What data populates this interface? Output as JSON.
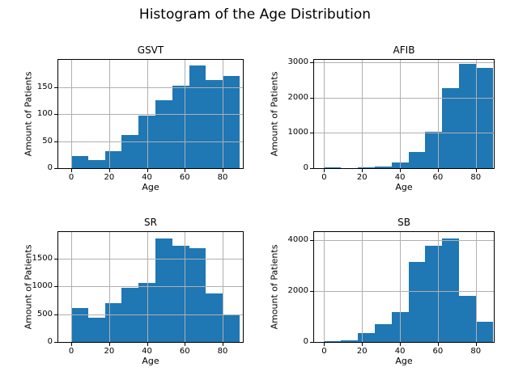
{
  "figure": {
    "title": "Histogram of the Age Distribution"
  },
  "colors": {
    "bar": "#1f77b4",
    "grid": "#b0b0b0",
    "axes": "#000000"
  },
  "chart_data": [
    {
      "type": "bar",
      "title": "GSVT",
      "xlabel": "Age",
      "ylabel": "Amount of Patients",
      "bin_edges": [
        0,
        8.9,
        17.8,
        26.7,
        35.6,
        44.5,
        53.4,
        62.3,
        71.2,
        80.1,
        89
      ],
      "values": [
        22,
        15,
        32,
        61,
        97,
        125,
        152,
        190,
        162,
        170
      ],
      "xticks": [
        0,
        20,
        40,
        60,
        80
      ],
      "yticks": [
        0,
        50,
        100,
        150
      ],
      "xlim": [
        -6.9,
        90.7
      ],
      "ylim": [
        0,
        200
      ],
      "grid": true,
      "legend": false
    },
    {
      "type": "bar",
      "title": "AFIB",
      "xlabel": "Age",
      "ylabel": "Amount of Patients",
      "bin_edges": [
        0,
        8.9,
        17.8,
        26.7,
        35.6,
        44.5,
        53.4,
        62.3,
        71.2,
        80.1,
        89
      ],
      "values": [
        30,
        8,
        25,
        50,
        155,
        470,
        1040,
        2280,
        2950,
        2840
      ],
      "xticks": [
        0,
        20,
        40,
        60,
        80
      ],
      "yticks": [
        0,
        1000,
        2000,
        3000
      ],
      "xlim": [
        -5.3,
        89.5
      ],
      "ylim": [
        0,
        3075
      ],
      "grid": true,
      "legend": false
    },
    {
      "type": "bar",
      "title": "SR",
      "xlabel": "Age",
      "ylabel": "Amount of Patients",
      "bin_edges": [
        0,
        8.9,
        17.8,
        26.7,
        35.6,
        44.5,
        53.4,
        62.3,
        71.2,
        80.1,
        89
      ],
      "values": [
        610,
        440,
        700,
        970,
        1060,
        1870,
        1730,
        1690,
        870,
        500
      ],
      "xticks": [
        0,
        20,
        40,
        60,
        80
      ],
      "yticks": [
        0,
        500,
        1000,
        1500
      ],
      "xlim": [
        -6.9,
        90.7
      ],
      "ylim": [
        0,
        1980
      ],
      "grid": true,
      "legend": false
    },
    {
      "type": "bar",
      "title": "SB",
      "xlabel": "Age",
      "ylabel": "Amount of Patients",
      "bin_edges": [
        0,
        8.9,
        17.8,
        26.7,
        35.6,
        44.5,
        53.4,
        62.3,
        71.2,
        80.1,
        89
      ],
      "values": [
        25,
        70,
        340,
        690,
        1190,
        3130,
        3790,
        4080,
        1810,
        780
      ],
      "xticks": [
        0,
        20,
        40,
        60,
        80
      ],
      "yticks": [
        0,
        2000,
        4000
      ],
      "xlim": [
        -5.3,
        89.5
      ],
      "ylim": [
        0,
        4320
      ],
      "grid": true,
      "legend": false
    }
  ]
}
